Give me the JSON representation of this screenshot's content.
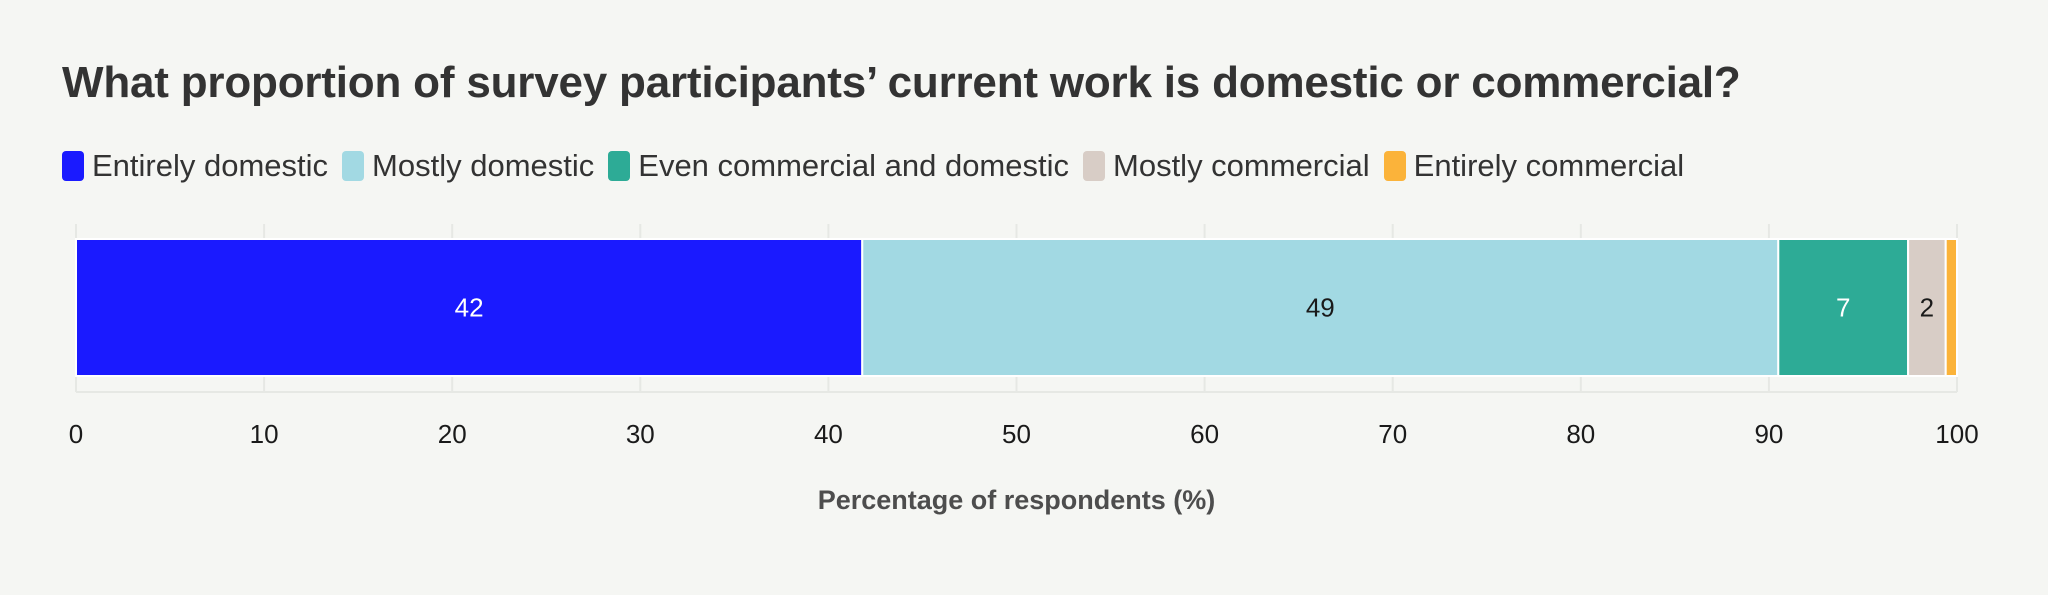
{
  "title": "What proportion of survey participants’ current work is domestic or commercial?",
  "legend": [
    {
      "label": "Entirely domestic",
      "color": "#1a1aff"
    },
    {
      "label": "Mostly domestic",
      "color": "#a2d9e3"
    },
    {
      "label": "Even commercial and domestic",
      "color": "#2dab96"
    },
    {
      "label": "Mostly commercial",
      "color": "#d8cdc6"
    },
    {
      "label": "Entirely commercial",
      "color": "#fbb33a"
    }
  ],
  "chart_data": {
    "type": "bar",
    "orientation": "horizontal",
    "stacked": true,
    "title": "What proportion of survey participants’ current work is domestic or commercial?",
    "xlabel": "Percentage of respondents (%)",
    "ylabel": "",
    "xlim": [
      0,
      100
    ],
    "xticks": [
      0,
      10,
      20,
      30,
      40,
      50,
      60,
      70,
      80,
      90,
      100
    ],
    "grid": true,
    "legend_position": "top-left",
    "series": [
      {
        "name": "Entirely domestic",
        "value": 41.8,
        "label": "42",
        "color": "#1a1aff",
        "label_color": "#ffffff"
      },
      {
        "name": "Mostly domestic",
        "value": 48.7,
        "label": "49",
        "color": "#a2d9e3",
        "label_color": "#1a1a1a"
      },
      {
        "name": "Even commercial and domestic",
        "value": 6.9,
        "label": "7",
        "color": "#2dab96",
        "label_color": "#ffffff"
      },
      {
        "name": "Mostly commercial",
        "value": 2.0,
        "label": "2",
        "color": "#d8cdc6",
        "label_color": "#1a1a1a"
      },
      {
        "name": "Entirely commercial",
        "value": 0.6,
        "label": "",
        "color": "#fbb33a",
        "label_color": "#1a1a1a"
      }
    ]
  }
}
